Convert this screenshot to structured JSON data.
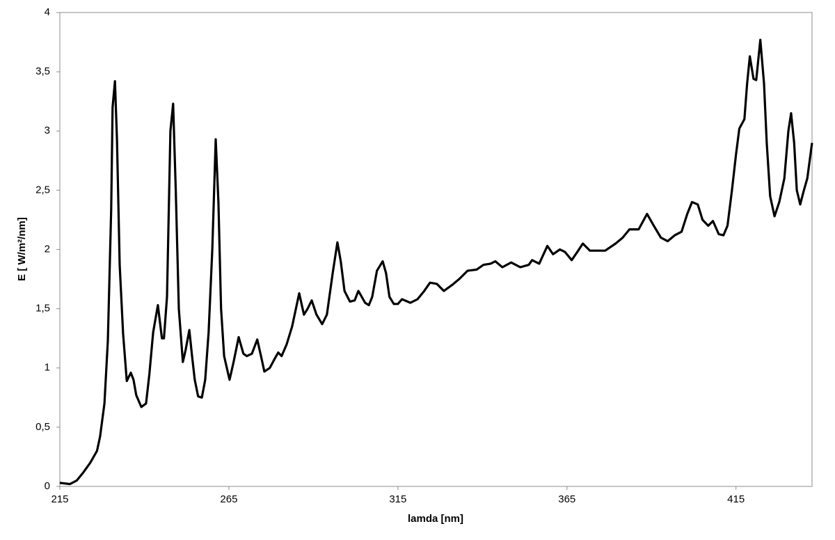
{
  "chart_data": {
    "type": "line",
    "xlabel": "lamda [nm]",
    "ylabel": "E [ W/m²/nm]",
    "xlim": [
      215,
      437.5
    ],
    "ylim": [
      0,
      4
    ],
    "xticks": [
      215,
      265,
      315,
      365,
      415
    ],
    "yticks": [
      0,
      {
        "value": 0.5,
        "label": "0,5"
      },
      1,
      {
        "value": 1.5,
        "label": "1,5"
      },
      2,
      {
        "value": 2.5,
        "label": "2,5"
      },
      3,
      {
        "value": 3.5,
        "label": "3,5"
      },
      4
    ],
    "grid": false,
    "series": [
      {
        "color": "#000000",
        "x": [
          215,
          218,
          220,
          222,
          224,
          226,
          226.9,
          228.2,
          229.2,
          230.2,
          230.6,
          231.3,
          231.9,
          232.7,
          233.7,
          234.8,
          236,
          236.8,
          237.6,
          239.1,
          240.5,
          241.5,
          242.6,
          244,
          245.2,
          245.8,
          246.7,
          247.7,
          248.5,
          249.3,
          250.2,
          251.4,
          252.2,
          253.3,
          254.1,
          254.9,
          255.9,
          257,
          258,
          259,
          260.1,
          261.1,
          261.9,
          262.7,
          263.6,
          265.2,
          266.4,
          267.9,
          269.3,
          270.3,
          271.8,
          273.4,
          274.5,
          275.5,
          277.1,
          278.6,
          279.6,
          280.6,
          282.1,
          283.7,
          285.8,
          287.2,
          288.3,
          289.5,
          290.9,
          292.6,
          294,
          295.7,
          297.1,
          298.1,
          299.2,
          300.8,
          302.2,
          303.3,
          304.3,
          305.3,
          306.4,
          307.4,
          308.8,
          310.5,
          311.5,
          312.5,
          313.8,
          315,
          316.2,
          318.7,
          320.8,
          322.8,
          324.5,
          326.5,
          328.6,
          331,
          333.1,
          335.6,
          338.3,
          340.3,
          342.4,
          343.8,
          345.9,
          348.5,
          351.2,
          353.7,
          354.7,
          356.8,
          359.2,
          360.9,
          362.9,
          364.4,
          366.4,
          368.1,
          369.7,
          371.8,
          374.3,
          376.3,
          379.4,
          381.5,
          383.5,
          386.2,
          388.7,
          390.7,
          392.8,
          394.8,
          396.9,
          398.9,
          400.6,
          402,
          403.7,
          405.1,
          406.8,
          408.2,
          409.9,
          411.3,
          412.5,
          413.8,
          415,
          416,
          417.5,
          418.3,
          419.1,
          420.2,
          421,
          422.2,
          423.3,
          424.1,
          425.1,
          426.4,
          427.8,
          429.3,
          430.5,
          431.3,
          432.2,
          433,
          434,
          435.1,
          436.1,
          437.5
        ],
        "values": [
          0.03,
          0.02,
          0.05,
          0.12,
          0.2,
          0.3,
          0.42,
          0.7,
          1.23,
          2.34,
          3.2,
          3.42,
          2.93,
          1.87,
          1.29,
          0.89,
          0.96,
          0.9,
          0.77,
          0.67,
          0.7,
          0.95,
          1.3,
          1.53,
          1.25,
          1.25,
          1.6,
          3.0,
          3.23,
          2.5,
          1.5,
          1.05,
          1.15,
          1.32,
          1.1,
          0.9,
          0.76,
          0.75,
          0.9,
          1.3,
          2.0,
          2.93,
          2.4,
          1.5,
          1.1,
          0.9,
          1.05,
          1.26,
          1.12,
          1.1,
          1.12,
          1.24,
          1.1,
          0.97,
          1.0,
          1.08,
          1.13,
          1.1,
          1.2,
          1.35,
          1.63,
          1.45,
          1.5,
          1.57,
          1.45,
          1.37,
          1.45,
          1.8,
          2.06,
          1.9,
          1.65,
          1.56,
          1.57,
          1.65,
          1.6,
          1.55,
          1.53,
          1.6,
          1.82,
          1.9,
          1.8,
          1.6,
          1.54,
          1.54,
          1.58,
          1.55,
          1.58,
          1.65,
          1.72,
          1.71,
          1.65,
          1.7,
          1.75,
          1.82,
          1.83,
          1.87,
          1.88,
          1.9,
          1.85,
          1.89,
          1.85,
          1.87,
          1.91,
          1.88,
          2.03,
          1.96,
          2.0,
          1.98,
          1.91,
          1.98,
          2.05,
          1.99,
          1.99,
          1.99,
          2.05,
          2.1,
          2.17,
          2.17,
          2.3,
          2.2,
          2.1,
          2.07,
          2.12,
          2.15,
          2.3,
          2.4,
          2.38,
          2.25,
          2.2,
          2.24,
          2.13,
          2.12,
          2.2,
          2.5,
          2.8,
          3.02,
          3.1,
          3.4,
          3.63,
          3.44,
          3.43,
          3.77,
          3.4,
          2.9,
          2.45,
          2.28,
          2.4,
          2.6,
          3.0,
          3.15,
          2.9,
          2.5,
          2.38,
          2.5,
          2.6,
          2.9
        ]
      }
    ]
  }
}
